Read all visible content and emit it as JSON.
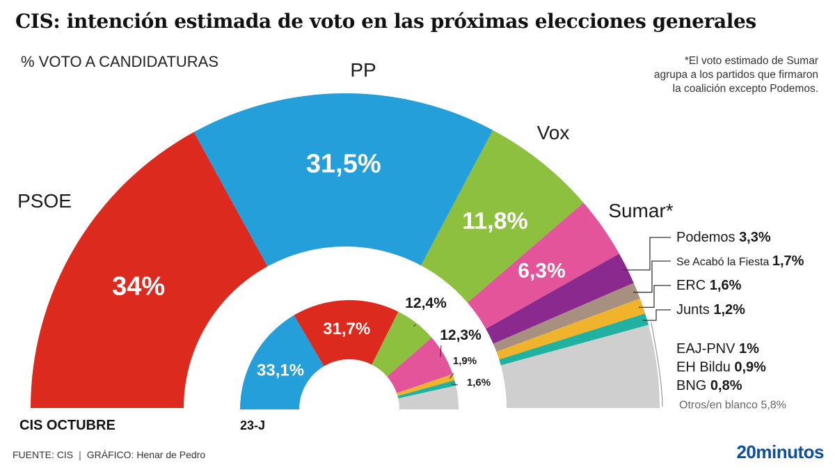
{
  "header": {
    "title": "CIS: intención estimada de voto en las próximas elecciones generales",
    "subtitle": "% VOTO A CANDIDATURAS",
    "note": [
      "*El voto estimado de Sumar",
      "agrupa a los partidos que firmaron",
      "la coalición excepto Podemos."
    ]
  },
  "footer": {
    "source": "FUENTE: CIS",
    "separator": "|",
    "credit": "GRÁFICO: Henar de Pedro",
    "logo_number": "20",
    "logo_text": "minutos"
  },
  "colors": {
    "PSOE": "#dc2a1f",
    "PP": "#259fd9",
    "Vox": "#8dc03f",
    "Sumar": "#e4549a",
    "Podemos": "#8a2a8f",
    "SALF": "#a89080",
    "ERC": "#f0b32c",
    "Junts": "#20b1a0",
    "Otros": "#cfcfcf"
  },
  "chart_data": [
    {
      "type": "pie",
      "subtype": "hemicycle",
      "label": "CIS OCTUBRE",
      "series": [
        {
          "name": "PSOE",
          "display": "34%",
          "value": 34,
          "color_key": "PSOE"
        },
        {
          "name": "PP",
          "display": "31,5%",
          "value": 31.5,
          "color_key": "PP"
        },
        {
          "name": "Vox",
          "display": "11,8%",
          "value": 11.8,
          "color_key": "Vox"
        },
        {
          "name": "Sumar*",
          "display": "6,3%",
          "value": 6.3,
          "color_key": "Sumar"
        },
        {
          "name": "Podemos",
          "display": "3,3%",
          "value": 3.3,
          "color_key": "Podemos"
        },
        {
          "name": "Se Acabó la Fiesta",
          "display": "1,7%",
          "value": 1.7,
          "color_key": "SALF"
        },
        {
          "name": "ERC",
          "display": "1,6%",
          "value": 1.6,
          "color_key": "ERC"
        },
        {
          "name": "Junts",
          "display": "1,2%",
          "value": 1.2,
          "color_key": "Junts"
        },
        {
          "name": "Otros",
          "display": "",
          "value": 8.5,
          "color_key": "Otros"
        }
      ],
      "others_breakdown": [
        {
          "name": "EAJ-PNV",
          "display": "1%",
          "value": 1
        },
        {
          "name": "EH Bildu",
          "display": "0,9%",
          "value": 0.9
        },
        {
          "name": "BNG",
          "display": "0,8%",
          "value": 0.8
        },
        {
          "name": "Otros/en blanco",
          "display": "5,8%",
          "value": 5.8
        }
      ]
    },
    {
      "type": "pie",
      "subtype": "hemicycle",
      "label": "23-J",
      "series": [
        {
          "name": "PP",
          "display": "33,1%",
          "value": 33.1,
          "color_key": "PP"
        },
        {
          "name": "PSOE",
          "display": "31,7%",
          "value": 31.7,
          "color_key": "PSOE"
        },
        {
          "name": "Vox",
          "display": "12,4%",
          "value": 12.4,
          "color_key": "Vox"
        },
        {
          "name": "Sumar",
          "display": "12,3%",
          "value": 12.3,
          "color_key": "Sumar"
        },
        {
          "name": "ERC",
          "display": "1,9%",
          "value": 1.9,
          "color_key": "ERC"
        },
        {
          "name": "Junts",
          "display": "1,6%",
          "value": 1.6,
          "color_key": "Junts"
        },
        {
          "name": "Otros",
          "display": "",
          "value": 7.0,
          "color_key": "Otros"
        }
      ]
    }
  ]
}
